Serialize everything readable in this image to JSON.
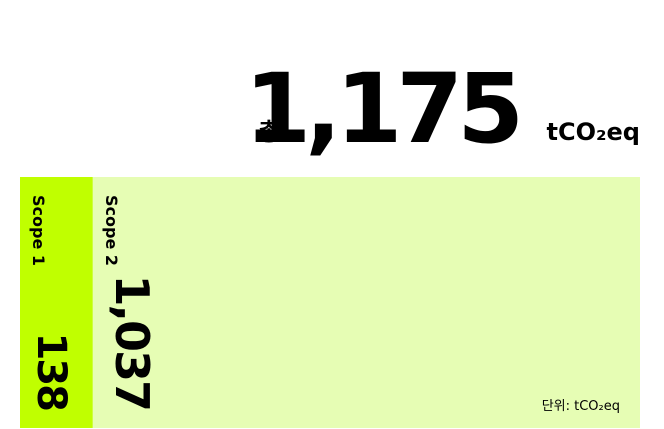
{
  "chart_data": {
    "type": "stacked-share-bar",
    "total_prefix": "총",
    "total": {
      "value": 1175,
      "label": "1,175"
    },
    "unit": "tCO₂eq",
    "categories": [
      "Scope 1",
      "Scope 2"
    ],
    "values": [
      138,
      1037
    ],
    "value_labels": [
      "138",
      "1,037"
    ],
    "colors": [
      "#c0ff00",
      "#e6fdb4"
    ],
    "note": "단위: tCO₂eq"
  }
}
